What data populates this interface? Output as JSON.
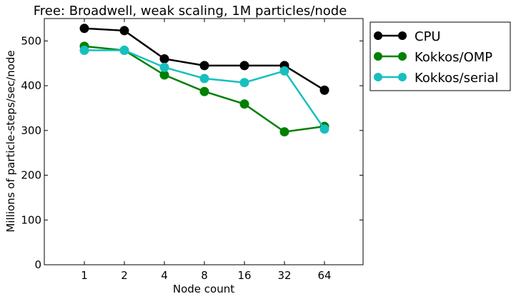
{
  "chart_data": {
    "type": "line",
    "title": "Free: Broadwell, weak scaling, 1M particles/node",
    "xlabel": "Node count",
    "ylabel": "Millions of particle-steps/sec/node",
    "categories": [
      "1",
      "2",
      "4",
      "8",
      "16",
      "32",
      "64"
    ],
    "ylim": [
      0,
      550
    ],
    "yticks": [
      0,
      100,
      200,
      300,
      400,
      500
    ],
    "grid": false,
    "legend": "outside-right",
    "series": [
      {
        "name": "CPU",
        "color": "#000000",
        "values": [
          528,
          523,
          460,
          445,
          445,
          445,
          390
        ]
      },
      {
        "name": "Kokkos/OMP",
        "color": "#008000",
        "values": [
          488,
          479,
          424,
          387,
          359,
          297,
          309
        ]
      },
      {
        "name": "Kokkos/serial",
        "color": "#17bfbf",
        "values": [
          479,
          479,
          441,
          416,
          407,
          433,
          303
        ]
      }
    ]
  }
}
